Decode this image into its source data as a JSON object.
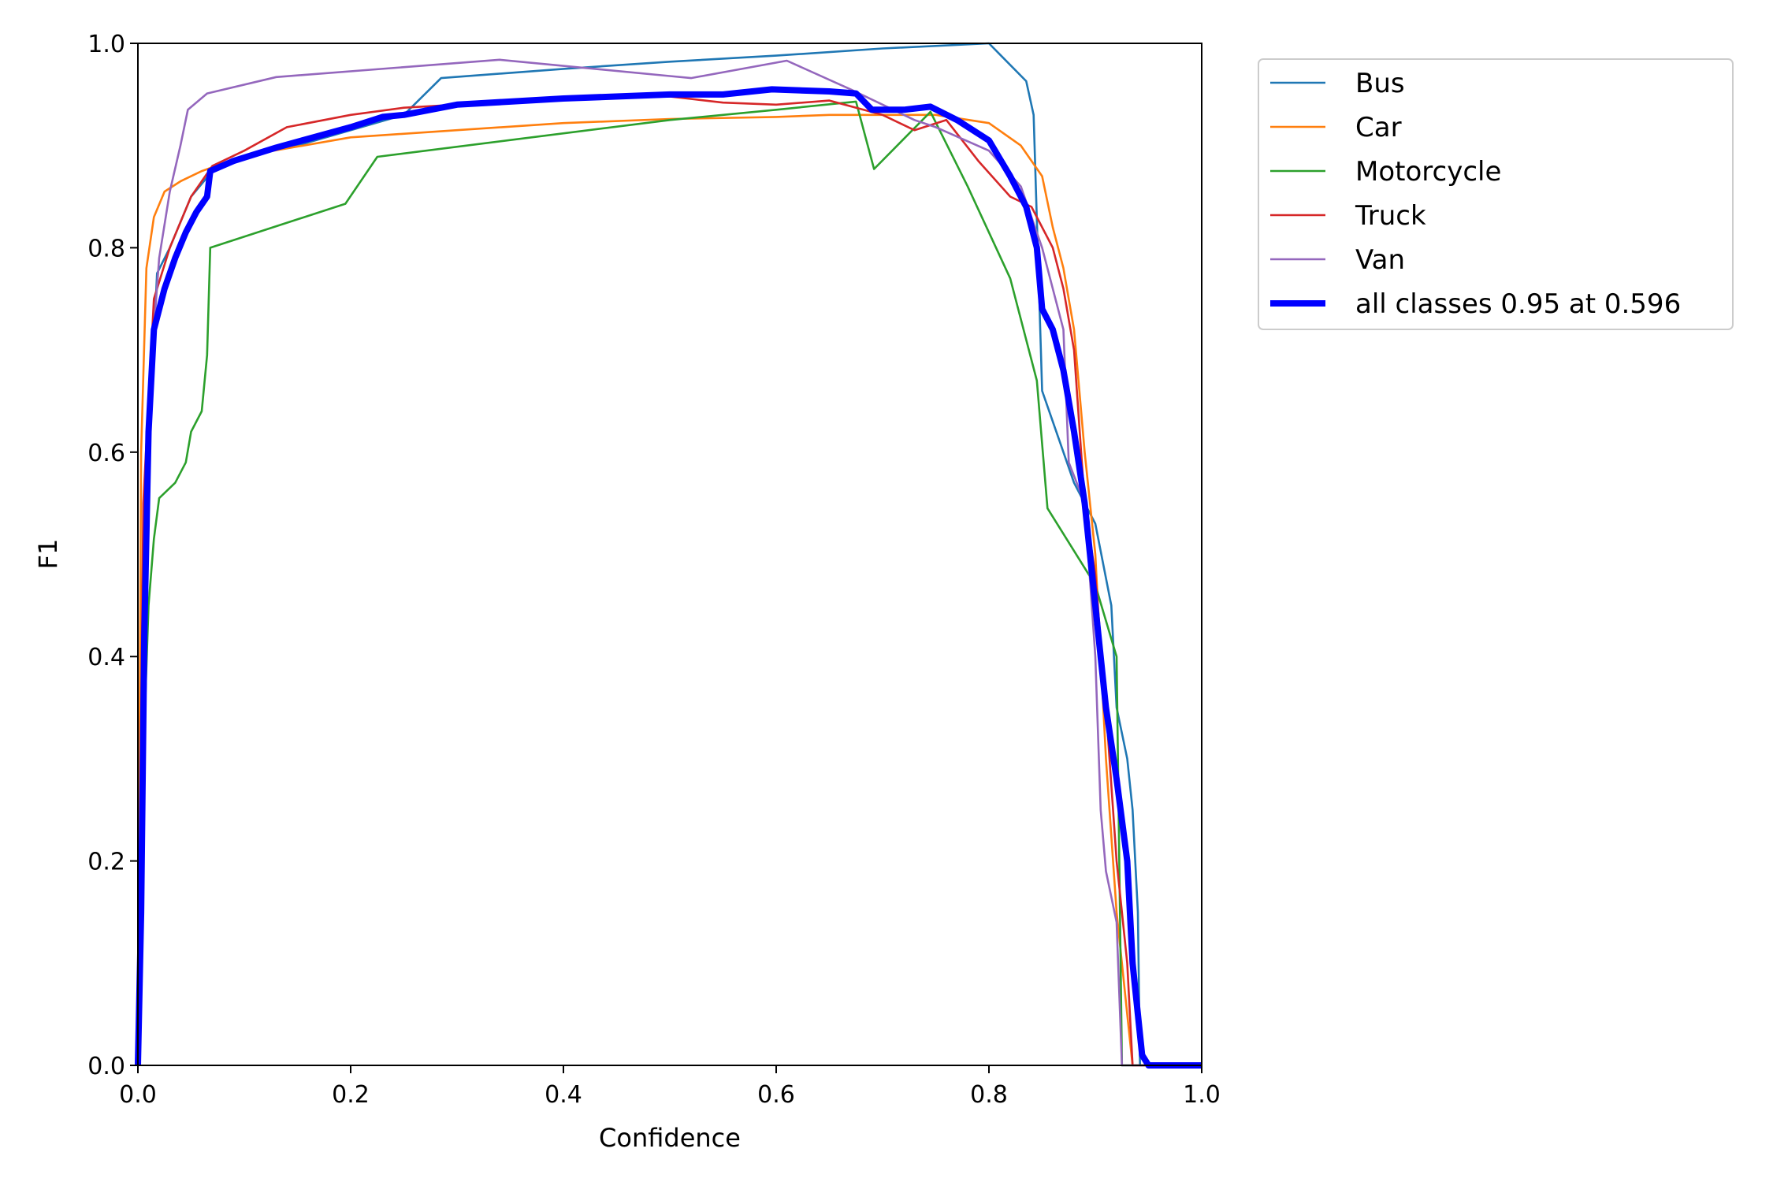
{
  "chart_data": {
    "type": "line",
    "title": "",
    "xlabel": "Confidence",
    "ylabel": "F1",
    "xlim": [
      0,
      1
    ],
    "ylim": [
      0,
      1
    ],
    "x_ticks": [
      "0.0",
      "0.2",
      "0.4",
      "0.6",
      "0.8",
      "1.0"
    ],
    "y_ticks": [
      "0.0",
      "0.2",
      "0.4",
      "0.6",
      "0.8",
      "1.0"
    ],
    "grid": false,
    "legend_position": "outside-top-right",
    "series": [
      {
        "name": "Bus",
        "color": "#1f77b4",
        "points": [
          [
            0.0,
            0.0
          ],
          [
            0.005,
            0.3
          ],
          [
            0.01,
            0.6
          ],
          [
            0.018,
            0.775
          ],
          [
            0.03,
            0.8
          ],
          [
            0.05,
            0.85
          ],
          [
            0.07,
            0.875
          ],
          [
            0.1,
            0.89
          ],
          [
            0.15,
            0.9
          ],
          [
            0.2,
            0.915
          ],
          [
            0.25,
            0.93
          ],
          [
            0.285,
            0.966
          ],
          [
            0.4,
            0.975
          ],
          [
            0.5,
            0.982
          ],
          [
            0.6,
            0.988
          ],
          [
            0.7,
            0.995
          ],
          [
            0.8,
            1.0
          ],
          [
            0.835,
            0.963
          ],
          [
            0.842,
            0.93
          ],
          [
            0.85,
            0.66
          ],
          [
            0.88,
            0.57
          ],
          [
            0.9,
            0.53
          ],
          [
            0.915,
            0.45
          ],
          [
            0.92,
            0.35
          ],
          [
            0.93,
            0.3
          ],
          [
            0.935,
            0.25
          ],
          [
            0.94,
            0.15
          ],
          [
            0.942,
            0.0
          ],
          [
            1.0,
            0.0
          ]
        ]
      },
      {
        "name": "Car",
        "color": "#ff7f0e",
        "points": [
          [
            0.0,
            0.0
          ],
          [
            0.003,
            0.6
          ],
          [
            0.008,
            0.78
          ],
          [
            0.015,
            0.83
          ],
          [
            0.025,
            0.855
          ],
          [
            0.04,
            0.865
          ],
          [
            0.06,
            0.875
          ],
          [
            0.1,
            0.89
          ],
          [
            0.2,
            0.908
          ],
          [
            0.3,
            0.915
          ],
          [
            0.4,
            0.922
          ],
          [
            0.5,
            0.926
          ],
          [
            0.6,
            0.928
          ],
          [
            0.65,
            0.93
          ],
          [
            0.7,
            0.93
          ],
          [
            0.75,
            0.93
          ],
          [
            0.8,
            0.922
          ],
          [
            0.83,
            0.9
          ],
          [
            0.85,
            0.87
          ],
          [
            0.86,
            0.82
          ],
          [
            0.87,
            0.78
          ],
          [
            0.88,
            0.72
          ],
          [
            0.89,
            0.6
          ],
          [
            0.9,
            0.5
          ],
          [
            0.91,
            0.3
          ],
          [
            0.92,
            0.15
          ],
          [
            0.93,
            0.05
          ],
          [
            0.935,
            0.0
          ],
          [
            1.0,
            0.0
          ]
        ]
      },
      {
        "name": "Motorcycle",
        "color": "#2ca02c",
        "points": [
          [
            0.0,
            0.02
          ],
          [
            0.005,
            0.3
          ],
          [
            0.01,
            0.45
          ],
          [
            0.015,
            0.515
          ],
          [
            0.02,
            0.555
          ],
          [
            0.035,
            0.57
          ],
          [
            0.045,
            0.59
          ],
          [
            0.05,
            0.62
          ],
          [
            0.06,
            0.64
          ],
          [
            0.065,
            0.695
          ],
          [
            0.068,
            0.8
          ],
          [
            0.195,
            0.843
          ],
          [
            0.225,
            0.889
          ],
          [
            0.5,
            0.925
          ],
          [
            0.6,
            0.935
          ],
          [
            0.675,
            0.943
          ],
          [
            0.692,
            0.877
          ],
          [
            0.745,
            0.933
          ],
          [
            0.78,
            0.86
          ],
          [
            0.82,
            0.77
          ],
          [
            0.845,
            0.67
          ],
          [
            0.855,
            0.545
          ],
          [
            0.9,
            0.47
          ],
          [
            0.92,
            0.4
          ],
          [
            0.925,
            0.0
          ],
          [
            1.0,
            0.0
          ]
        ]
      },
      {
        "name": "Truck",
        "color": "#d62728",
        "points": [
          [
            0.0,
            0.0
          ],
          [
            0.005,
            0.55
          ],
          [
            0.015,
            0.75
          ],
          [
            0.03,
            0.8
          ],
          [
            0.05,
            0.85
          ],
          [
            0.07,
            0.88
          ],
          [
            0.1,
            0.895
          ],
          [
            0.14,
            0.918
          ],
          [
            0.2,
            0.93
          ],
          [
            0.25,
            0.937
          ],
          [
            0.3,
            0.94
          ],
          [
            0.4,
            0.945
          ],
          [
            0.5,
            0.948
          ],
          [
            0.55,
            0.942
          ],
          [
            0.6,
            0.94
          ],
          [
            0.65,
            0.944
          ],
          [
            0.7,
            0.93
          ],
          [
            0.73,
            0.915
          ],
          [
            0.76,
            0.925
          ],
          [
            0.79,
            0.885
          ],
          [
            0.82,
            0.85
          ],
          [
            0.84,
            0.84
          ],
          [
            0.86,
            0.8
          ],
          [
            0.87,
            0.76
          ],
          [
            0.88,
            0.7
          ],
          [
            0.89,
            0.55
          ],
          [
            0.9,
            0.48
          ],
          [
            0.91,
            0.35
          ],
          [
            0.92,
            0.2
          ],
          [
            0.93,
            0.1
          ],
          [
            0.935,
            0.0
          ],
          [
            1.0,
            0.0
          ]
        ]
      },
      {
        "name": "Van",
        "color": "#9467bd",
        "points": [
          [
            0.0,
            0.0
          ],
          [
            0.005,
            0.45
          ],
          [
            0.01,
            0.65
          ],
          [
            0.02,
            0.79
          ],
          [
            0.03,
            0.855
          ],
          [
            0.04,
            0.9
          ],
          [
            0.047,
            0.935
          ],
          [
            0.065,
            0.951
          ],
          [
            0.13,
            0.967
          ],
          [
            0.34,
            0.984
          ],
          [
            0.5,
            0.968
          ],
          [
            0.52,
            0.966
          ],
          [
            0.61,
            0.983
          ],
          [
            0.67,
            0.955
          ],
          [
            0.7,
            0.94
          ],
          [
            0.73,
            0.925
          ],
          [
            0.75,
            0.918
          ],
          [
            0.8,
            0.895
          ],
          [
            0.83,
            0.86
          ],
          [
            0.85,
            0.8
          ],
          [
            0.86,
            0.76
          ],
          [
            0.87,
            0.72
          ],
          [
            0.875,
            0.59
          ],
          [
            0.89,
            0.55
          ],
          [
            0.9,
            0.4
          ],
          [
            0.905,
            0.25
          ],
          [
            0.91,
            0.19
          ],
          [
            0.92,
            0.14
          ],
          [
            0.925,
            0.0
          ],
          [
            1.0,
            0.0
          ]
        ]
      },
      {
        "name": "all classes 0.95 at 0.596",
        "color": "#0000ff",
        "points": [
          [
            0.0,
            0.0
          ],
          [
            0.003,
            0.15
          ],
          [
            0.006,
            0.42
          ],
          [
            0.01,
            0.62
          ],
          [
            0.015,
            0.72
          ],
          [
            0.025,
            0.76
          ],
          [
            0.035,
            0.79
          ],
          [
            0.045,
            0.815
          ],
          [
            0.055,
            0.835
          ],
          [
            0.065,
            0.85
          ],
          [
            0.068,
            0.875
          ],
          [
            0.09,
            0.885
          ],
          [
            0.13,
            0.898
          ],
          [
            0.2,
            0.918
          ],
          [
            0.23,
            0.928
          ],
          [
            0.25,
            0.93
          ],
          [
            0.3,
            0.94
          ],
          [
            0.4,
            0.946
          ],
          [
            0.5,
            0.95
          ],
          [
            0.55,
            0.95
          ],
          [
            0.596,
            0.955
          ],
          [
            0.65,
            0.953
          ],
          [
            0.675,
            0.951
          ],
          [
            0.69,
            0.935
          ],
          [
            0.72,
            0.935
          ],
          [
            0.745,
            0.938
          ],
          [
            0.77,
            0.925
          ],
          [
            0.8,
            0.905
          ],
          [
            0.82,
            0.87
          ],
          [
            0.835,
            0.84
          ],
          [
            0.845,
            0.8
          ],
          [
            0.85,
            0.74
          ],
          [
            0.86,
            0.72
          ],
          [
            0.87,
            0.68
          ],
          [
            0.88,
            0.62
          ],
          [
            0.89,
            0.55
          ],
          [
            0.9,
            0.45
          ],
          [
            0.91,
            0.35
          ],
          [
            0.92,
            0.28
          ],
          [
            0.93,
            0.2
          ],
          [
            0.935,
            0.1
          ],
          [
            0.94,
            0.05
          ],
          [
            0.944,
            0.01
          ],
          [
            0.95,
            0.0
          ],
          [
            1.0,
            0.0
          ]
        ]
      }
    ]
  }
}
